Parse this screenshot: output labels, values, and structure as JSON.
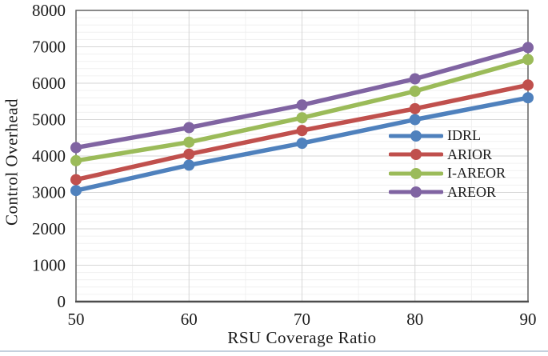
{
  "page": {
    "background": "#ffffff",
    "divider_color": "#c5d0dd"
  },
  "chart_data": {
    "type": "line",
    "title": "",
    "xlabel": "RSU Coverage Ratio",
    "ylabel": "Control Overhead",
    "x": [
      50,
      60,
      70,
      80,
      90
    ],
    "xlim": [
      50,
      90
    ],
    "ylim": [
      0,
      8000
    ],
    "y_major_ticks": [
      0,
      1000,
      2000,
      3000,
      4000,
      5000,
      6000,
      7000,
      8000
    ],
    "y_minor_unit": 200,
    "x_major_unit": 10,
    "x_minor_unit": 5,
    "grid": "major and minor gridlines on",
    "legend_position": "inside right, no border",
    "marker": "circle",
    "series": [
      {
        "name": "IDRL",
        "color": "#4F81BD",
        "values": [
          3050,
          3750,
          4350,
          5000,
          5600
        ]
      },
      {
        "name": "ARIOR",
        "color": "#C0504D",
        "values": [
          3350,
          4050,
          4700,
          5300,
          5950
        ]
      },
      {
        "name": "I-AREOR",
        "color": "#9BBB59",
        "values": [
          3870,
          4380,
          5050,
          5780,
          6650
        ]
      },
      {
        "name": "AREOR",
        "color": "#8064A2",
        "values": [
          4230,
          4780,
          5400,
          6120,
          6980
        ]
      }
    ],
    "colors": {
      "axis_text": "#1a1a1a",
      "major_grid": "#d6d6d6",
      "minor_grid": "#f0f0f0",
      "plot_border": "#595959",
      "axis_line": "#4d4d4d"
    }
  }
}
